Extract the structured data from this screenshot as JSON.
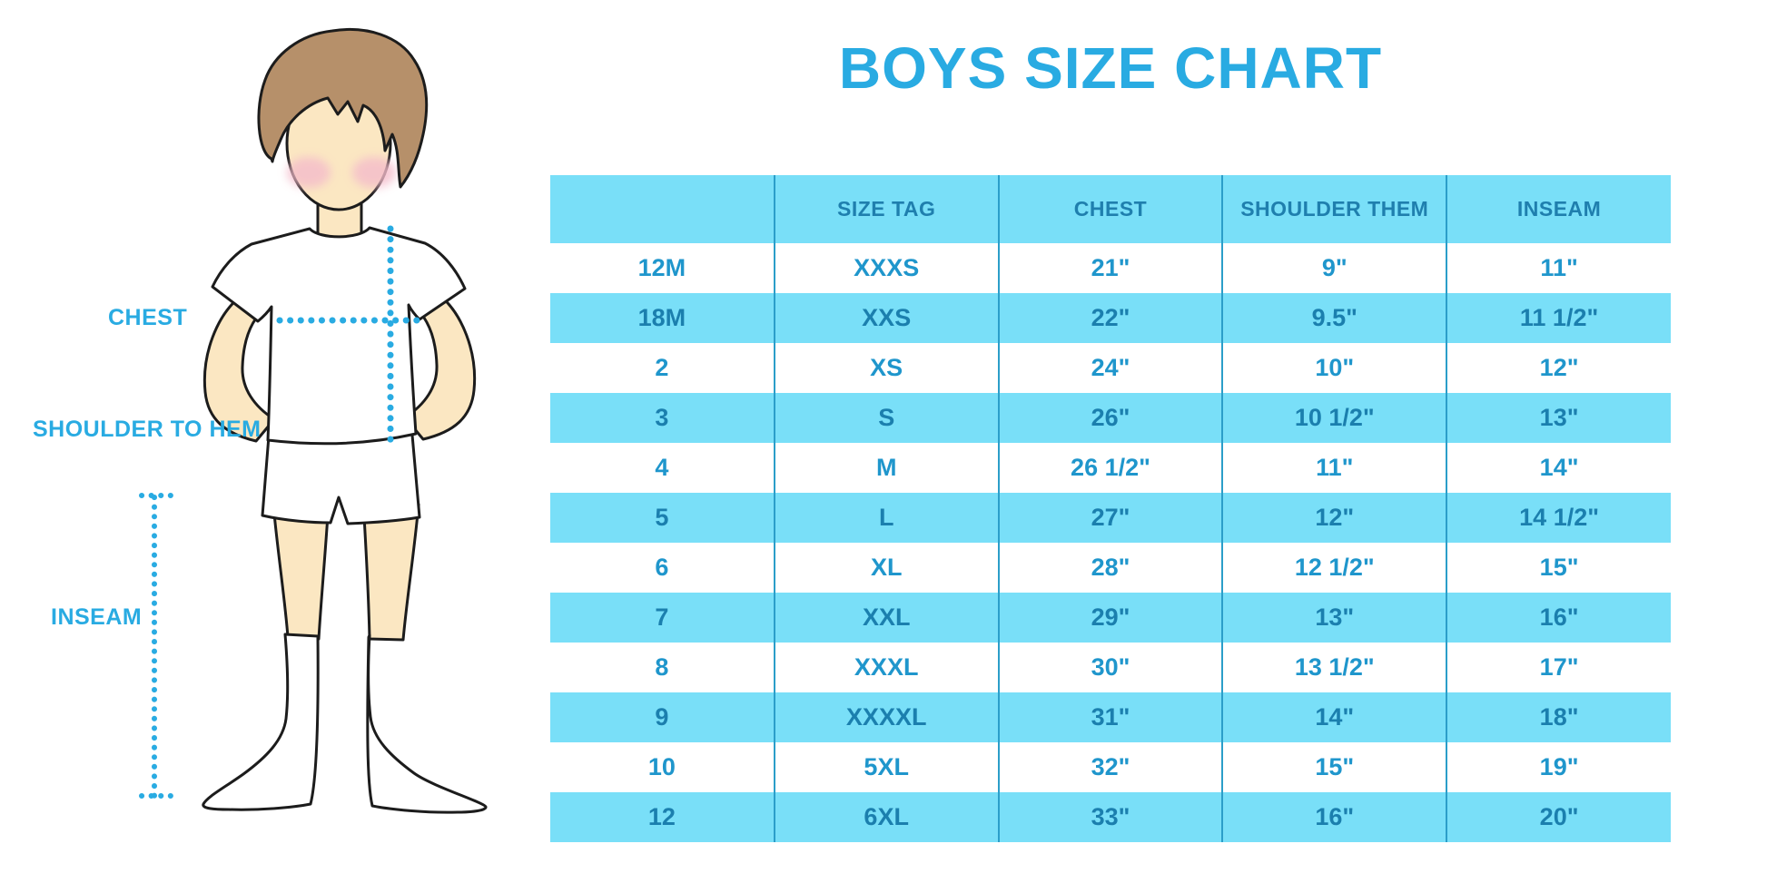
{
  "title": "BOYS SIZE CHART",
  "colors": {
    "accent": "#29ABE2",
    "stripe": "#79DFF8",
    "grid": "#2B9EC9",
    "header_text": "#1F7FAE",
    "cell_text": "#1F96CC",
    "cell_text_stripe": "#1B7FAE",
    "skin": "#FBE7C2",
    "hair": "#B6906A",
    "blush": "#F4BCCB"
  },
  "figure": {
    "labels": {
      "chest": "CHEST",
      "shoulder_to_hem": "SHOULDER TO HEM",
      "inseam": "INSEAM"
    }
  },
  "chart_data": {
    "type": "table",
    "title": "BOYS SIZE CHART",
    "columns": [
      "",
      "SIZE TAG",
      "CHEST",
      "SHOULDER THEM",
      "INSEAM"
    ],
    "rows": [
      [
        "12M",
        "XXXS",
        "21\"",
        "9\"",
        "11\""
      ],
      [
        "18M",
        "XXS",
        "22\"",
        "9.5\"",
        "11 1/2\""
      ],
      [
        "2",
        "XS",
        "24\"",
        "10\"",
        "12\""
      ],
      [
        "3",
        "S",
        "26\"",
        "10 1/2\"",
        "13\""
      ],
      [
        "4",
        "M",
        "26 1/2\"",
        "11\"",
        "14\""
      ],
      [
        "5",
        "L",
        "27\"",
        "12\"",
        "14 1/2\""
      ],
      [
        "6",
        "XL",
        "28\"",
        "12 1/2\"",
        "15\""
      ],
      [
        "7",
        "XXL",
        "29\"",
        "13\"",
        "16\""
      ],
      [
        "8",
        "XXXL",
        "30\"",
        "13 1/2\"",
        "17\""
      ],
      [
        "9",
        "XXXXL",
        "31\"",
        "14\"",
        "18\""
      ],
      [
        "10",
        "5XL",
        "32\"",
        "15\"",
        "19\""
      ],
      [
        "12",
        "6XL",
        "33\"",
        "16\"",
        "20\""
      ]
    ],
    "layout": {
      "stripe_pattern": "alternating white / cyan starting white",
      "grid": "internal vertical separators only",
      "legend": "none"
    }
  }
}
